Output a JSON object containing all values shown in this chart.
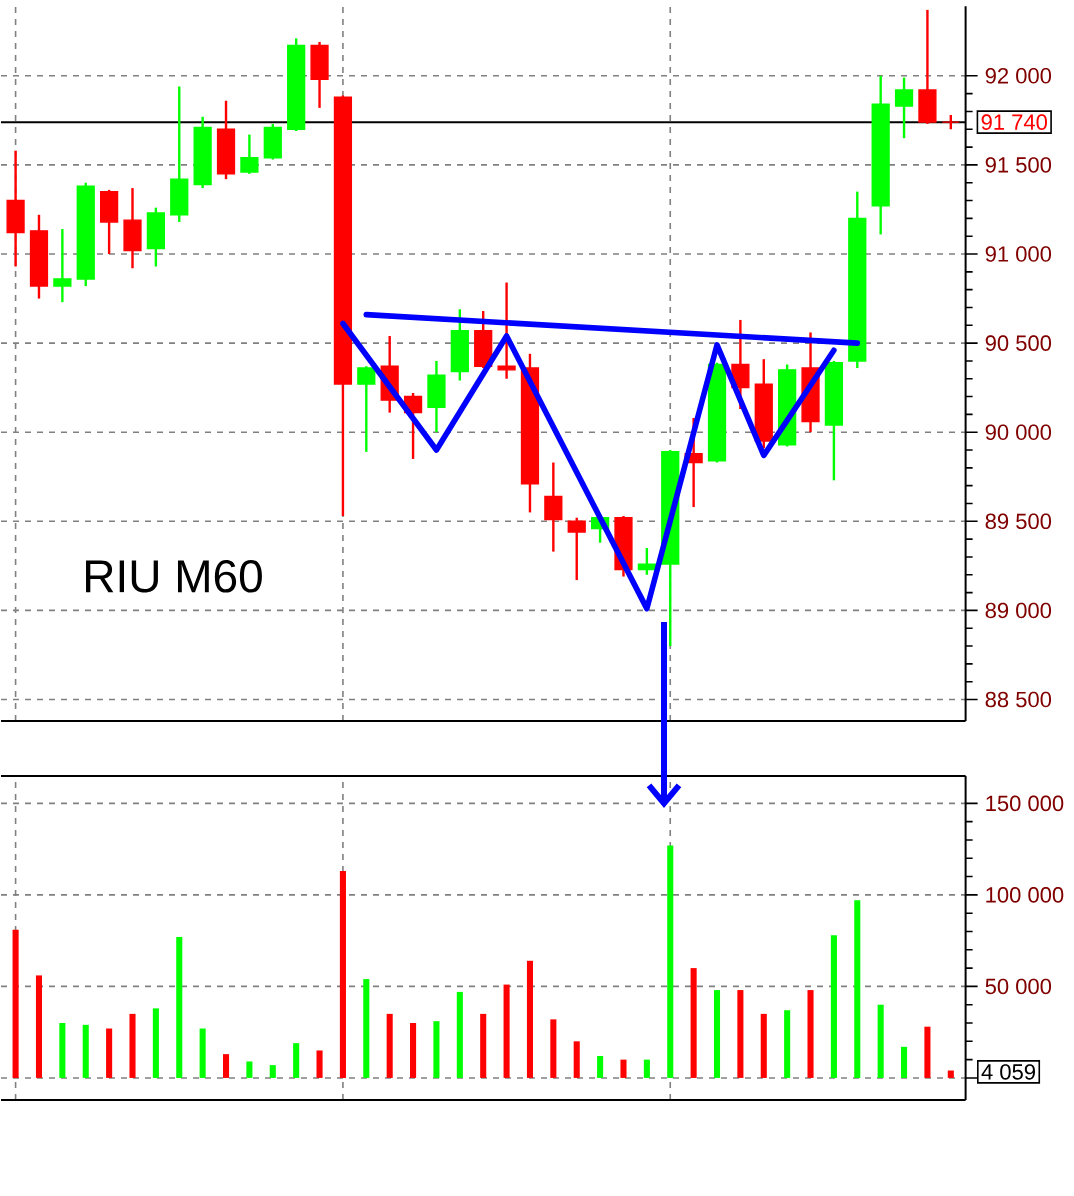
{
  "chart_data": [
    {
      "type": "candlestick",
      "title": "RIU M60",
      "categories": [
        null,
        null,
        null,
        null,
        null,
        null,
        null,
        null,
        null,
        null,
        null,
        null,
        null,
        null,
        null,
        null,
        null,
        null,
        null,
        null,
        null,
        null,
        null,
        null,
        null,
        null,
        null,
        null,
        null,
        null,
        null,
        null,
        null,
        null,
        null,
        null,
        null,
        null,
        null,
        null,
        null
      ],
      "ohlc": [
        [
          91300,
          91580,
          90930,
          91120
        ],
        [
          91130,
          91220,
          90750,
          90820
        ],
        [
          90820,
          91140,
          90730,
          90860
        ],
        [
          90860,
          91400,
          90820,
          91380
        ],
        [
          91350,
          91360,
          91000,
          91180
        ],
        [
          91190,
          91370,
          90920,
          91020
        ],
        [
          91030,
          91260,
          90930,
          91230
        ],
        [
          91220,
          91940,
          91180,
          91420
        ],
        [
          91390,
          91770,
          91370,
          91710
        ],
        [
          91700,
          91860,
          91420,
          91450
        ],
        [
          91460,
          91670,
          91450,
          91540
        ],
        [
          91540,
          91730,
          91530,
          91710
        ],
        [
          91700,
          92210,
          91690,
          92170
        ],
        [
          92170,
          92190,
          91820,
          91980
        ],
        [
          91880,
          91890,
          89530,
          90270
        ],
        [
          90270,
          90370,
          89890,
          90360
        ],
        [
          90370,
          90540,
          90110,
          90180
        ],
        [
          90200,
          90220,
          89850,
          90110
        ],
        [
          90140,
          90400,
          90000,
          90320
        ],
        [
          90340,
          90690,
          90290,
          90570
        ],
        [
          90570,
          90680,
          90360,
          90370
        ],
        [
          90370,
          90840,
          90300,
          90350
        ],
        [
          90360,
          90440,
          89550,
          89710
        ],
        [
          89640,
          89830,
          89330,
          89510
        ],
        [
          89500,
          89520,
          89170,
          89440
        ],
        [
          89460,
          89530,
          89380,
          89520
        ],
        [
          89520,
          89530,
          89190,
          89230
        ],
        [
          89230,
          89350,
          89200,
          89260
        ],
        [
          89260,
          89900,
          88800,
          89890
        ],
        [
          89880,
          90080,
          89580,
          89830
        ],
        [
          89840,
          90390,
          89830,
          90380
        ],
        [
          90380,
          90630,
          90130,
          90250
        ],
        [
          90270,
          90410,
          89910,
          89950
        ],
        [
          89930,
          90380,
          89920,
          90350
        ],
        [
          90360,
          90560,
          90000,
          90060
        ],
        [
          90040,
          90400,
          89730,
          90390
        ],
        [
          90400,
          91350,
          90360,
          91200
        ],
        [
          91270,
          92000,
          91110,
          91840
        ],
        [
          91830,
          91990,
          91650,
          91920
        ],
        [
          91920,
          92370,
          91730,
          91740
        ],
        [
          91740,
          91780,
          91700,
          91740
        ]
      ],
      "colors": [
        "#ff0000",
        "#ff0000",
        "#00ff00",
        "#00ff00",
        "#ff0000",
        "#ff0000",
        "#00ff00",
        "#00ff00",
        "#00ff00",
        "#ff0000",
        "#00ff00",
        "#00ff00",
        "#00ff00",
        "#ff0000",
        "#ff0000",
        "#00ff00",
        "#ff0000",
        "#ff0000",
        "#00ff00",
        "#00ff00",
        "#ff0000",
        "#ff0000",
        "#ff0000",
        "#ff0000",
        "#ff0000",
        "#00ff00",
        "#ff0000",
        "#00ff00",
        "#00ff00",
        "#ff0000",
        "#00ff00",
        "#ff0000",
        "#ff0000",
        "#00ff00",
        "#ff0000",
        "#00ff00",
        "#00ff00",
        "#00ff00",
        "#00ff00",
        "#ff0000",
        "#ff0000"
      ],
      "series": [
        {
          "type": "line",
          "color": "#0000ff",
          "values": [
            null,
            null,
            null,
            null,
            null,
            null,
            null,
            null,
            null,
            null,
            null,
            null,
            null,
            null,
            90610,
            null,
            null,
            null,
            89900,
            null,
            null,
            90540,
            null,
            null,
            null,
            null,
            null,
            89010,
            null,
            null,
            90490,
            null,
            89870,
            null,
            null,
            90460,
            null,
            null,
            null,
            null,
            null
          ]
        },
        {
          "type": "line",
          "color": "#0000ff",
          "values": [
            null,
            null,
            null,
            null,
            null,
            null,
            null,
            null,
            null,
            null,
            null,
            null,
            null,
            null,
            null,
            90660,
            null,
            null,
            null,
            null,
            null,
            null,
            null,
            null,
            null,
            null,
            null,
            null,
            null,
            null,
            null,
            null,
            null,
            null,
            null,
            null,
            90500,
            null,
            null,
            null,
            null
          ]
        }
      ],
      "ylim": [
        88380,
        92390
      ],
      "yticks": [
        {
          "value": 88500,
          "label": "88 500"
        },
        {
          "value": 89000,
          "label": "89 000"
        },
        {
          "value": 89500,
          "label": "89 500"
        },
        {
          "value": 90000,
          "label": "90 000"
        },
        {
          "value": 90500,
          "label": "90 500"
        },
        {
          "value": 91000,
          "label": "91 000"
        },
        {
          "value": 91500,
          "label": "91 500"
        },
        {
          "value": 92000,
          "label": "92 000"
        }
      ],
      "ref_lines": [
        {
          "axis": "y",
          "value": 91740,
          "label": "91 740",
          "color": "#000000"
        }
      ],
      "grid": true,
      "tick_labels": "y"
    },
    {
      "type": "bar",
      "categories": [
        null,
        null,
        null,
        null,
        null,
        null,
        null,
        null,
        null,
        null,
        null,
        null,
        null,
        null,
        null,
        null,
        null,
        null,
        null,
        null,
        null,
        null,
        null,
        null,
        null,
        null,
        null,
        null,
        null,
        null,
        null,
        null,
        null,
        null,
        null,
        null,
        null,
        null,
        null,
        null,
        null
      ],
      "values": [
        81000,
        56000,
        30000,
        29000,
        27000,
        35000,
        38000,
        77000,
        27000,
        13000,
        9000,
        7000,
        19000,
        15000,
        113000,
        54000,
        35000,
        30000,
        31000,
        47000,
        35000,
        51000,
        64000,
        32000,
        20000,
        12000,
        10000,
        10000,
        127000,
        60000,
        48000,
        48000,
        35000,
        37000,
        48000,
        78000,
        97000,
        40000,
        17000,
        28000,
        4059
      ],
      "colors": [
        "#ff0000",
        "#ff0000",
        "#00ff00",
        "#00ff00",
        "#ff0000",
        "#ff0000",
        "#00ff00",
        "#00ff00",
        "#00ff00",
        "#ff0000",
        "#00ff00",
        "#00ff00",
        "#00ff00",
        "#ff0000",
        "#ff0000",
        "#00ff00",
        "#ff0000",
        "#ff0000",
        "#00ff00",
        "#00ff00",
        "#ff0000",
        "#ff0000",
        "#ff0000",
        "#ff0000",
        "#ff0000",
        "#00ff00",
        "#ff0000",
        "#00ff00",
        "#00ff00",
        "#ff0000",
        "#00ff00",
        "#ff0000",
        "#ff0000",
        "#00ff00",
        "#ff0000",
        "#00ff00",
        "#00ff00",
        "#00ff00",
        "#00ff00",
        "#ff0000",
        "#ff0000"
      ],
      "annotations": [
        "4 059"
      ],
      "ylim": [
        -12000,
        165000
      ],
      "yticks": [
        {
          "value": 0,
          "label": null
        },
        {
          "value": 50000,
          "label": "50 000"
        },
        {
          "value": 100000,
          "label": "100 000"
        },
        {
          "value": 150000,
          "label": "150 000"
        }
      ],
      "grid": true,
      "tick_labels": "y"
    }
  ]
}
